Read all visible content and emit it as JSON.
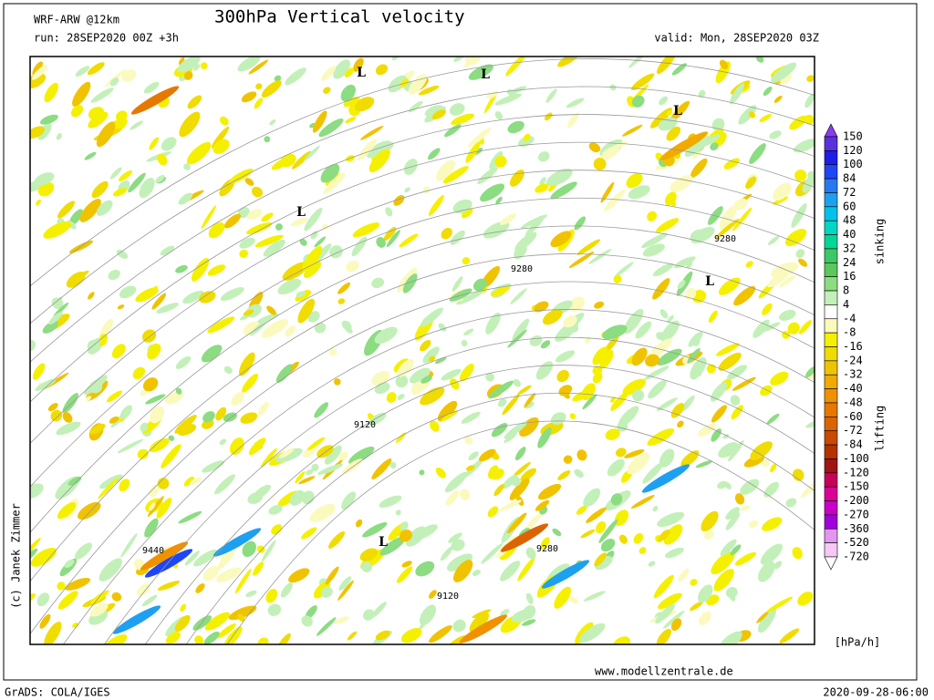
{
  "header": {
    "model": "WRF-ARW @12km",
    "title": "300hPa Vertical velocity",
    "run": "run: 28SEP2020 00Z +3h",
    "valid": "valid: Mon, 28SEP2020 03Z"
  },
  "map": {
    "contour_labels": [
      "9280",
      "9280",
      "9120",
      "9440",
      "9280",
      "9120"
    ],
    "lows": [
      "L",
      "L",
      "L",
      "L",
      "L",
      "L"
    ]
  },
  "legend": {
    "levels": [
      150,
      120,
      100,
      84,
      72,
      60,
      48,
      40,
      32,
      24,
      16,
      8,
      4,
      -4,
      -8,
      -16,
      -24,
      -32,
      -40,
      -48,
      -60,
      -72,
      -84,
      -100,
      -120,
      -150,
      -200,
      -270,
      -360,
      -520,
      -720
    ],
    "colors": [
      "#8a3cf0",
      "#5a32dc",
      "#1e1ee6",
      "#1e46f5",
      "#2878f0",
      "#1ea0f0",
      "#00c3eb",
      "#00d7c3",
      "#00d796",
      "#3cc864",
      "#5ac85a",
      "#8cdc82",
      "#c3f0b9",
      "#ffffff",
      "#fafabe",
      "#f5f000",
      "#f0dc00",
      "#f0c300",
      "#f0aa00",
      "#f09100",
      "#e67800",
      "#dc6400",
      "#c84b00",
      "#b43200",
      "#a01414",
      "#c8005a",
      "#dc0096",
      "#c800c8",
      "#a000dc",
      "#e196f0",
      "#f5c8f5",
      "#ffffff"
    ],
    "upper_label": "sinking",
    "lower_label": "lifting",
    "unit": "[hPa/h]"
  },
  "footer": {
    "copyright": "(c) Janek Zimmer",
    "website": "www.modellzentrale.de",
    "software": "GrADS: COLA/IGES",
    "timestamp": "2020-09-28-06:00"
  }
}
